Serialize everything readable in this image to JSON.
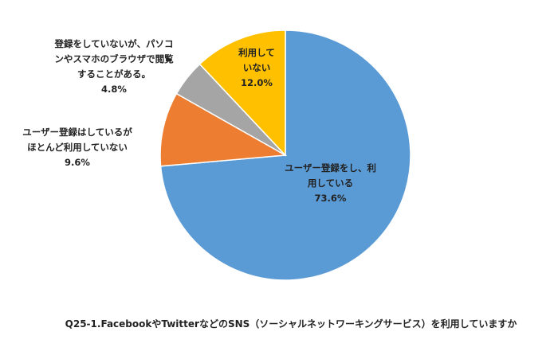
{
  "chart_data": {
    "type": "pie",
    "title": "Q25-1.FacebookやTwitterなどのSNS（ソーシャルネットワーキングサービス）を利用していますか",
    "categories": [
      "ユーザー登録をし、利用している",
      "ユーザー登録はしているがほとんど利用していない",
      "登録をしていないが、パソコンやスマホのブラウザで閲覧することがある。",
      "利用していない"
    ],
    "values": [
      73.6,
      9.6,
      4.8,
      12.0
    ],
    "value_labels": [
      "73.6%",
      "9.6%",
      "4.8%",
      "12.0%"
    ],
    "colors": [
      "#5b9bd5",
      "#ed7d31",
      "#a5a5a5",
      "#ffc000"
    ]
  }
}
